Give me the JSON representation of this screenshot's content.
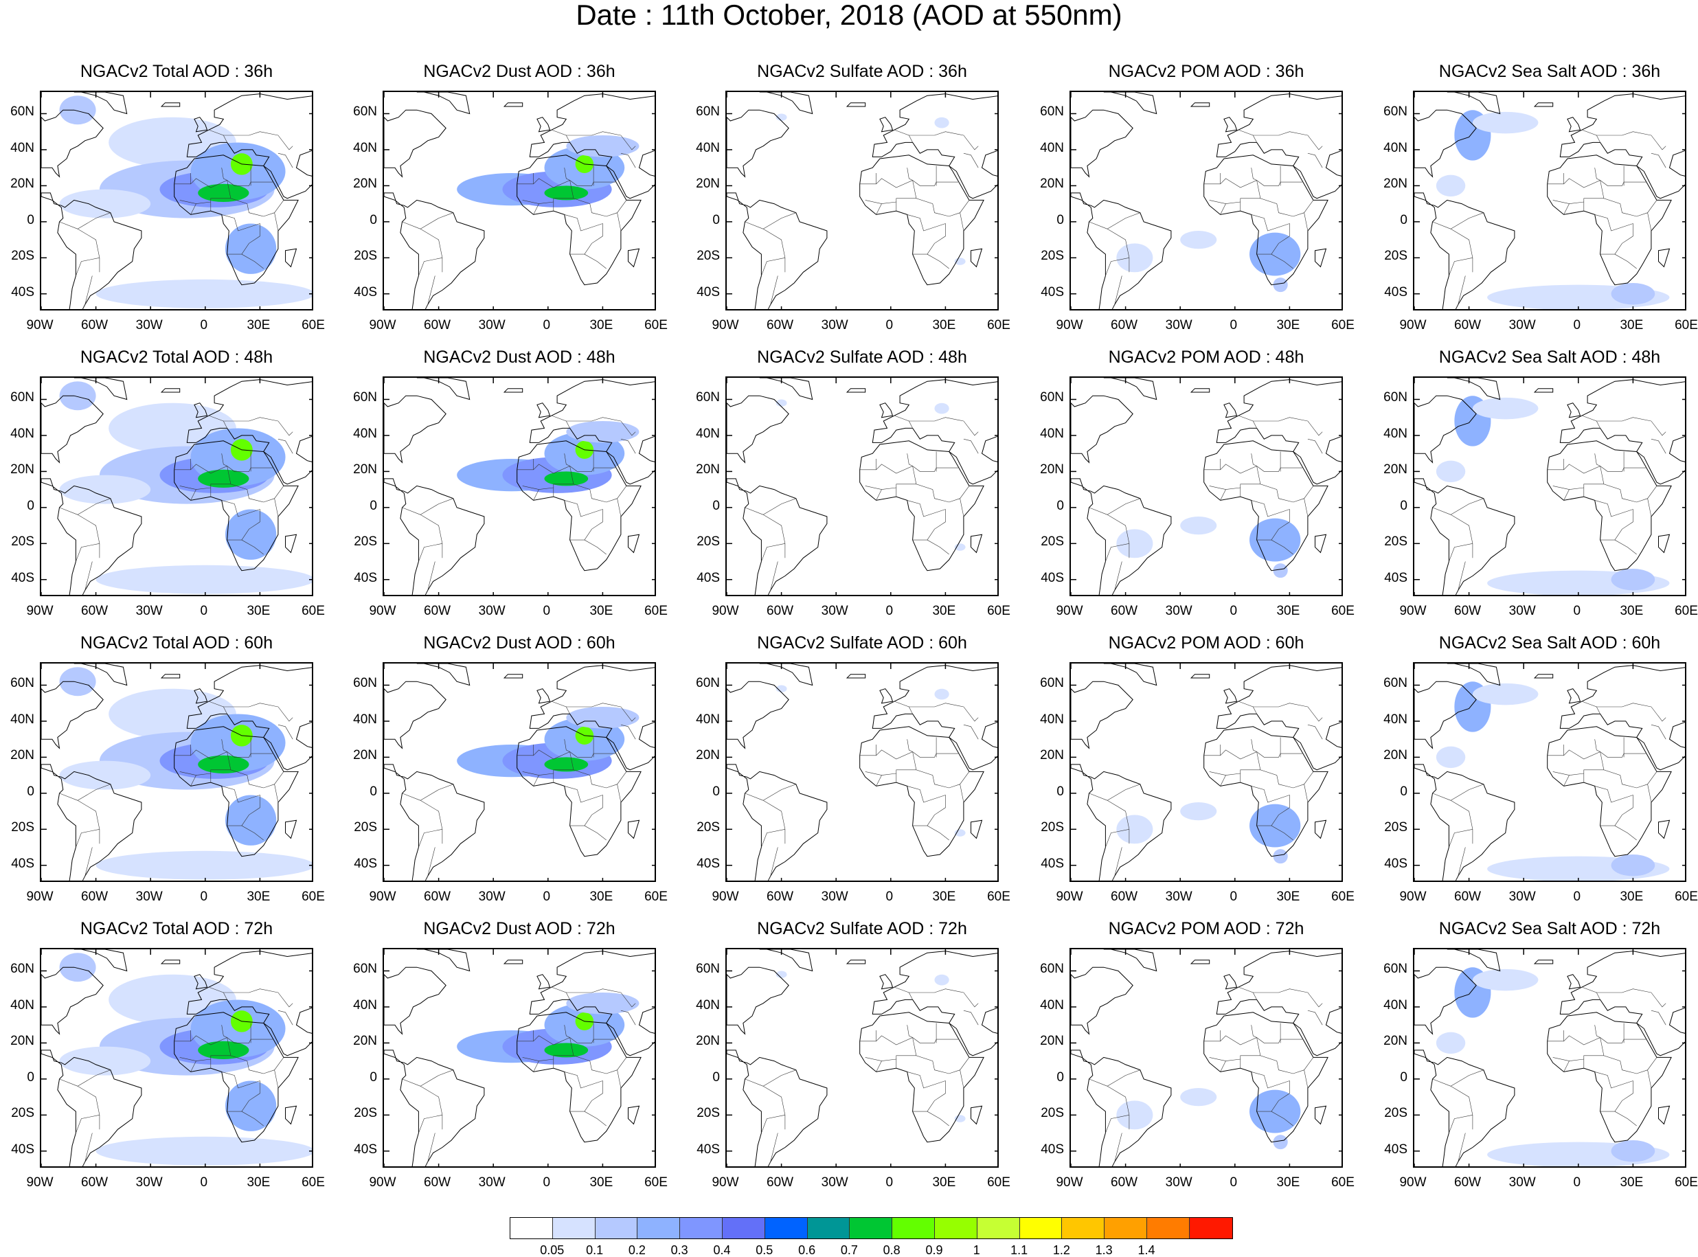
{
  "title": "Date : 11th October, 2018 (AOD at 550nm)",
  "panels": [
    {
      "row": 0,
      "col": 0,
      "title": "NGACv2 Total AOD : 36h",
      "variable": "total",
      "forecast_hour": "36h"
    },
    {
      "row": 0,
      "col": 1,
      "title": "NGACv2 Dust AOD : 36h",
      "variable": "dust",
      "forecast_hour": "36h"
    },
    {
      "row": 0,
      "col": 2,
      "title": "NGACv2 Sulfate AOD : 36h",
      "variable": "sulfate",
      "forecast_hour": "36h"
    },
    {
      "row": 0,
      "col": 3,
      "title": "NGACv2 POM AOD : 36h",
      "variable": "pom",
      "forecast_hour": "36h"
    },
    {
      "row": 0,
      "col": 4,
      "title": "NGACv2 Sea Salt AOD : 36h",
      "variable": "seasalt",
      "forecast_hour": "36h"
    },
    {
      "row": 1,
      "col": 0,
      "title": "NGACv2 Total AOD : 48h",
      "variable": "total",
      "forecast_hour": "48h"
    },
    {
      "row": 1,
      "col": 1,
      "title": "NGACv2 Dust AOD : 48h",
      "variable": "dust",
      "forecast_hour": "48h"
    },
    {
      "row": 1,
      "col": 2,
      "title": "NGACv2 Sulfate AOD : 48h",
      "variable": "sulfate",
      "forecast_hour": "48h"
    },
    {
      "row": 1,
      "col": 3,
      "title": "NGACv2 POM AOD : 48h",
      "variable": "pom",
      "forecast_hour": "48h"
    },
    {
      "row": 1,
      "col": 4,
      "title": "NGACv2 Sea Salt AOD : 48h",
      "variable": "seasalt",
      "forecast_hour": "48h"
    },
    {
      "row": 2,
      "col": 0,
      "title": "NGACv2 Total AOD : 60h",
      "variable": "total",
      "forecast_hour": "60h"
    },
    {
      "row": 2,
      "col": 1,
      "title": "NGACv2 Dust AOD : 60h",
      "variable": "dust",
      "forecast_hour": "60h"
    },
    {
      "row": 2,
      "col": 2,
      "title": "NGACv2 Sulfate AOD : 60h",
      "variable": "sulfate",
      "forecast_hour": "60h"
    },
    {
      "row": 2,
      "col": 3,
      "title": "NGACv2 POM AOD : 60h",
      "variable": "pom",
      "forecast_hour": "60h"
    },
    {
      "row": 2,
      "col": 4,
      "title": "NGACv2 Sea Salt AOD : 60h",
      "variable": "seasalt",
      "forecast_hour": "60h"
    },
    {
      "row": 3,
      "col": 0,
      "title": "NGACv2 Total AOD : 72h",
      "variable": "total",
      "forecast_hour": "72h"
    },
    {
      "row": 3,
      "col": 1,
      "title": "NGACv2 Dust AOD : 72h",
      "variable": "dust",
      "forecast_hour": "72h"
    },
    {
      "row": 3,
      "col": 2,
      "title": "NGACv2 Sulfate AOD : 72h",
      "variable": "sulfate",
      "forecast_hour": "72h"
    },
    {
      "row": 3,
      "col": 3,
      "title": "NGACv2 POM AOD : 72h",
      "variable": "pom",
      "forecast_hour": "72h"
    },
    {
      "row": 3,
      "col": 4,
      "title": "NGACv2 Sea Salt  AOD : 72h",
      "variable": "seasalt",
      "forecast_hour": "72h"
    }
  ],
  "lat_ticks": [
    "60N",
    "40N",
    "20N",
    "0",
    "20S",
    "40S"
  ],
  "lon_ticks": [
    "90W",
    "60W",
    "30W",
    "0",
    "30E",
    "60E"
  ],
  "map_extent": {
    "lon_min": -90,
    "lon_max": 60,
    "lat_min": -50,
    "lat_max": 72
  },
  "colorbar": {
    "colors": [
      "#ffffff",
      "#d6e2ff",
      "#b5c9ff",
      "#8eb2ff",
      "#7f96ff",
      "#6370f8",
      "#0063ff",
      "#009696",
      "#00c633",
      "#63ff00",
      "#96ff00",
      "#c6ff33",
      "#ffff00",
      "#ffc600",
      "#ffa000",
      "#ff7c00",
      "#ff1900"
    ],
    "labels": [
      "0.05",
      "0.1",
      "0.2",
      "0.3",
      "0.4",
      "0.5",
      "0.6",
      "0.7",
      "0.8",
      "0.9",
      "1",
      "1.1",
      "1.2",
      "1.3",
      "1.4"
    ]
  }
}
